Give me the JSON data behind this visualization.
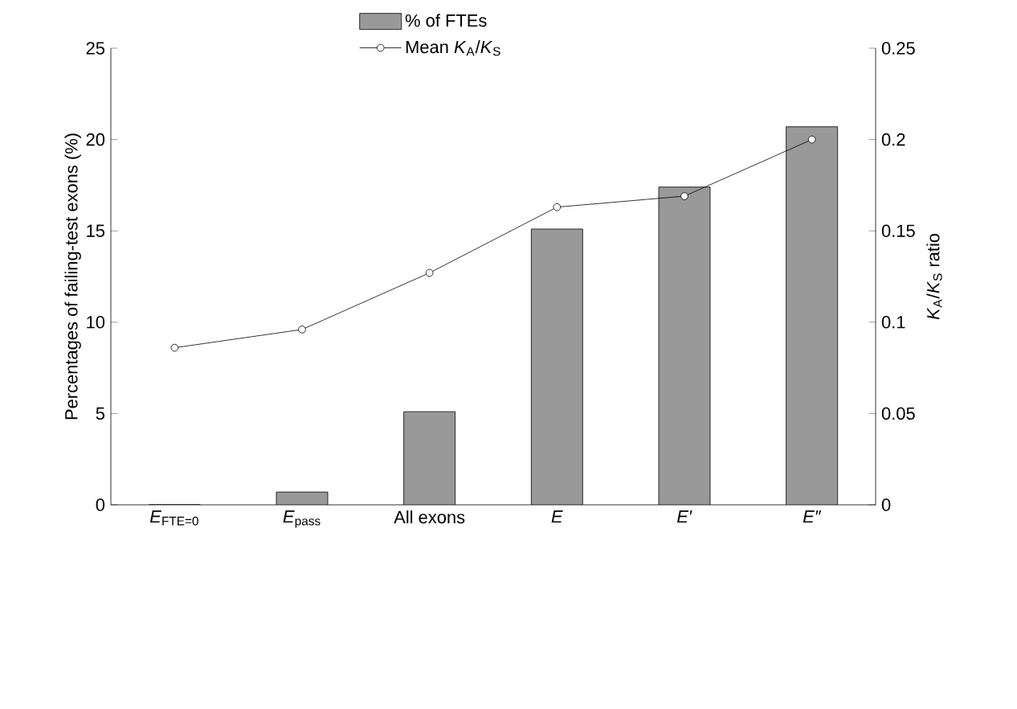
{
  "chart_data": {
    "type": "bar",
    "categories": [
      "*E*$_{FTE=0}$",
      "*E*$_{pass}$",
      "All exons",
      "*E*",
      "*E′*",
      "*E″*"
    ],
    "ylabel": "Percentages of failing-test exons (%)",
    "y2label": "*K*$_{A}$/*K*$_{S}$ ratio",
    "ylim": [
      0,
      25
    ],
    "yticks": [
      0,
      5,
      10,
      15,
      20,
      25
    ],
    "y2lim": [
      0,
      0.25
    ],
    "y2ticks": [
      0,
      0.05,
      0.1,
      0.15,
      0.2,
      0.25
    ],
    "legend": "top",
    "series": [
      {
        "name": "% of FTEs",
        "color": "#999999",
        "values": [
          0,
          0.7,
          5.1,
          15.1,
          17.4,
          20.7
        ]
      },
      {
        "name": "Mean *K*$_{A}$/*K*$_{S}$",
        "type": "line",
        "axis": "y2",
        "color": "#000000",
        "marker": "circle",
        "values": [
          0.086,
          0.096,
          0.127,
          0.163,
          0.169,
          0.2
        ]
      }
    ]
  }
}
